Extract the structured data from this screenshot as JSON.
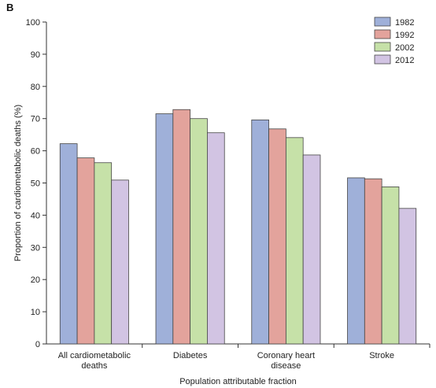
{
  "panel_label": "B",
  "chart_data": {
    "type": "bar",
    "ylabel": "Proportion of cardiometabolic deaths (%)",
    "xlabel": "Population attributable fraction",
    "ylim": [
      0,
      100
    ],
    "yticks": [
      0,
      10,
      20,
      30,
      40,
      50,
      60,
      70,
      80,
      90,
      100
    ],
    "grid": false,
    "legend_position": "top-right",
    "categories": [
      [
        "All cardiometabolic",
        "deaths"
      ],
      [
        "Diabetes"
      ],
      [
        "Coronary heart",
        "disease"
      ],
      [
        "Stroke"
      ]
    ],
    "series": [
      {
        "name": "1982",
        "color": "#9fb0d9",
        "values": [
          62.2,
          71.5,
          69.6,
          51.6
        ]
      },
      {
        "name": "1992",
        "color": "#e3a39c",
        "values": [
          57.8,
          72.8,
          66.8,
          51.3
        ]
      },
      {
        "name": "2002",
        "color": "#c6e1a8",
        "values": [
          56.3,
          70.0,
          64.1,
          48.8
        ]
      },
      {
        "name": "2012",
        "color": "#d2c4e3",
        "values": [
          50.9,
          65.6,
          58.7,
          42.1
        ]
      }
    ]
  }
}
